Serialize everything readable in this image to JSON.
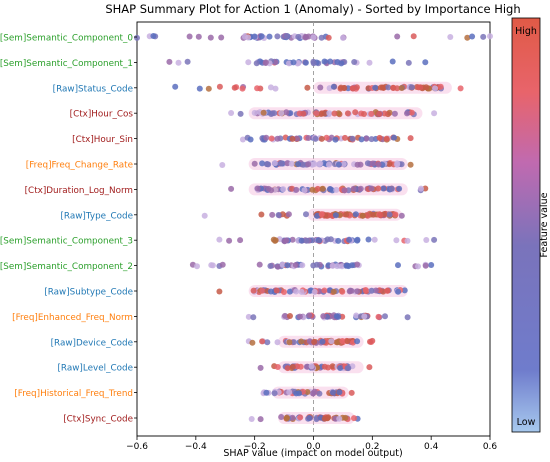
{
  "chart_data": {
    "type": "scatter",
    "title": "SHAP Summary Plot for Action 1 (Anomaly) - Sorted by Importance High",
    "xlabel": "SHAP value (impact on model output)",
    "xlim": [
      -0.6,
      0.6
    ],
    "xticks": [
      -0.6,
      -0.4,
      -0.2,
      0.0,
      0.2,
      0.4,
      0.6
    ],
    "xtick_labels": [
      "−0.6",
      "−0.4",
      "−0.2",
      "0.0",
      "0.2",
      "0.4",
      "0.6"
    ],
    "zero_line": true,
    "colorbar": {
      "label": "Feature value",
      "high_label": "High",
      "low_label": "Low",
      "colors": [
        "#5b6fbe",
        "#7a73bb",
        "#c06ab0",
        "#e8646b",
        "#e05a46"
      ]
    },
    "point_colors": [
      "#5b6fbe",
      "#7a74b8",
      "#9a6aa8",
      "#b5703f",
      "#c55a48",
      "#e8646b",
      "#d95a5a",
      "#c8b0e0",
      "#3aa0a0"
    ],
    "features": [
      {
        "name": "[Sem]Semantic_Component_0",
        "color": "#2ca02c",
        "min": -0.6,
        "max": 0.6,
        "core_min": -0.25,
        "core_max": 0.1,
        "n": 55,
        "red_bias": 0.05,
        "glow": false
      },
      {
        "name": "[Sem]Semantic_Component_1",
        "color": "#2ca02c",
        "min": -0.49,
        "max": 0.38,
        "core_min": -0.2,
        "core_max": 0.12,
        "n": 45,
        "red_bias": 0.05,
        "glow": false
      },
      {
        "name": "[Raw]Status_Code",
        "color": "#1f77b4",
        "min": -0.47,
        "max": 0.5,
        "core_min": 0.02,
        "core_max": 0.45,
        "n": 70,
        "red_bias": 0.7,
        "glow": true
      },
      {
        "name": "[Ctx]Hour_Cos",
        "color": "#a11d1d",
        "min": -0.28,
        "max": 0.41,
        "core_min": -0.2,
        "core_max": 0.35,
        "n": 65,
        "red_bias": 0.55,
        "glow": true
      },
      {
        "name": "[Ctx]Hour_Sin",
        "color": "#a11d1d",
        "min": -0.24,
        "max": 0.33,
        "core_min": -0.2,
        "core_max": 0.3,
        "n": 55,
        "red_bias": 0.4,
        "glow": false
      },
      {
        "name": "[Freq]Freq_Change_Rate",
        "color": "#ff7f0e",
        "min": -0.31,
        "max": 0.33,
        "core_min": -0.2,
        "core_max": 0.3,
        "n": 70,
        "red_bias": 0.35,
        "glow": true
      },
      {
        "name": "[Ctx]Duration_Log_Norm",
        "color": "#a11d1d",
        "min": -0.28,
        "max": 0.38,
        "core_min": -0.2,
        "core_max": 0.3,
        "n": 65,
        "red_bias": 0.5,
        "glow": true
      },
      {
        "name": "[Raw]Type_Code",
        "color": "#1f77b4",
        "min": -0.37,
        "max": 0.3,
        "core_min": 0.0,
        "core_max": 0.28,
        "n": 70,
        "red_bias": 0.85,
        "glow": true
      },
      {
        "name": "[Sem]Semantic_Component_3",
        "color": "#2ca02c",
        "min": -0.32,
        "max": 0.41,
        "core_min": -0.15,
        "core_max": 0.15,
        "n": 50,
        "red_bias": 0.1,
        "glow": false
      },
      {
        "name": "[Sem]Semantic_Component_2",
        "color": "#2ca02c",
        "min": -0.41,
        "max": 0.4,
        "core_min": -0.15,
        "core_max": 0.15,
        "n": 50,
        "red_bias": 0.1,
        "glow": false
      },
      {
        "name": "[Raw]Subtype_Code",
        "color": "#1f77b4",
        "min": -0.32,
        "max": 0.31,
        "core_min": -0.2,
        "core_max": 0.3,
        "n": 70,
        "red_bias": 0.45,
        "glow": true
      },
      {
        "name": "[Freq]Enhanced_Freq_Norm",
        "color": "#ff7f0e",
        "min": -0.22,
        "max": 0.32,
        "core_min": -0.1,
        "core_max": 0.2,
        "n": 45,
        "red_bias": 0.3,
        "glow": false
      },
      {
        "name": "[Raw]Device_Code",
        "color": "#1f77b4",
        "min": -0.22,
        "max": 0.2,
        "core_min": -0.1,
        "core_max": 0.15,
        "n": 55,
        "red_bias": 0.75,
        "glow": true
      },
      {
        "name": "[Raw]Level_Code",
        "color": "#1f77b4",
        "min": -0.18,
        "max": 0.19,
        "core_min": -0.1,
        "core_max": 0.15,
        "n": 50,
        "red_bias": 0.6,
        "glow": true
      },
      {
        "name": "[Freq]Historical_Freq_Trend",
        "color": "#ff7f0e",
        "min": -0.17,
        "max": 0.13,
        "core_min": -0.12,
        "core_max": 0.1,
        "n": 45,
        "red_bias": 0.5,
        "glow": true
      },
      {
        "name": "[Ctx]Sync_Code",
        "color": "#a11d1d",
        "min": -0.21,
        "max": 0.15,
        "core_min": -0.1,
        "core_max": 0.12,
        "n": 45,
        "red_bias": 0.5,
        "glow": true
      }
    ]
  }
}
